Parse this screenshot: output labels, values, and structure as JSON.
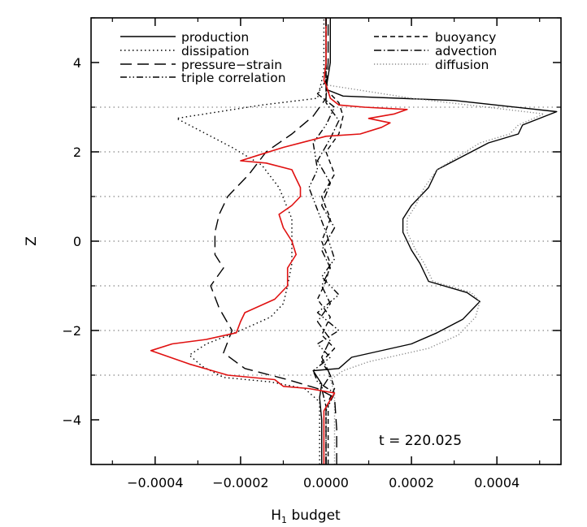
{
  "chart_data": {
    "type": "line",
    "title": "",
    "xlabel": "H",
    "xlabel_sub": "1",
    "xlabel_rest": " budget",
    "ylabel": "Z",
    "xlim": [
      -0.00055,
      0.00055
    ],
    "ylim": [
      -5,
      5
    ],
    "x_ticks": [
      -0.0004,
      -0.0002,
      0.0,
      0.0002,
      0.0004
    ],
    "x_tick_labels": [
      "−0.0004",
      "−0.0002",
      "0.0000",
      "0.0002",
      "0.0004"
    ],
    "y_ticks": [
      -4,
      -2,
      0,
      2,
      4
    ],
    "y_tick_labels": [
      "−4",
      "−2",
      "0",
      "2",
      "4"
    ],
    "reference_lines_z": [
      3,
      2,
      1,
      0,
      -1,
      -2,
      -3
    ],
    "annotation": "t  =  220.025",
    "legend": [
      {
        "label": "production",
        "dash": "solid",
        "column": 0
      },
      {
        "label": "dissipation",
        "dash": "dotted",
        "column": 0
      },
      {
        "label": "pressure−strain",
        "dash": "longdash",
        "column": 0
      },
      {
        "label": "triple correlation",
        "dash": "dashdotdot",
        "column": 0
      },
      {
        "label": "buoyancy",
        "dash": "dashed",
        "column": 1
      },
      {
        "label": "advection",
        "dash": "dashdot",
        "column": 1
      },
      {
        "label": "diffusion",
        "dash": "graydotted",
        "column": 1
      }
    ],
    "series": [
      {
        "name": "production",
        "dash": "solid",
        "color": "#000000",
        "points": [
          [
            -1e-05,
            -5
          ],
          [
            -1e-05,
            -4
          ],
          [
            -1.5e-05,
            -3.5
          ],
          [
            -1e-05,
            -3.2
          ],
          [
            -3e-05,
            -2.9
          ],
          [
            3e-05,
            -2.85
          ],
          [
            6e-05,
            -2.6
          ],
          [
            0.0002,
            -2.3
          ],
          [
            0.00026,
            -2.05
          ],
          [
            0.00032,
            -1.75
          ],
          [
            0.00036,
            -1.35
          ],
          [
            0.00033,
            -1.15
          ],
          [
            0.00024,
            -0.9
          ],
          [
            0.00022,
            -0.5
          ],
          [
            0.0002,
            -0.2
          ],
          [
            0.00018,
            0.2
          ],
          [
            0.00018,
            0.5
          ],
          [
            0.0002,
            0.8
          ],
          [
            0.00024,
            1.2
          ],
          [
            0.00026,
            1.6
          ],
          [
            0.00038,
            2.2
          ],
          [
            0.00045,
            2.4
          ],
          [
            0.00046,
            2.6
          ],
          [
            0.00054,
            2.9
          ],
          [
            0.0003,
            3.15
          ],
          [
            4e-05,
            3.25
          ],
          [
            0.0,
            3.4
          ],
          [
            1e-05,
            4
          ],
          [
            1e-05,
            5
          ]
        ]
      },
      {
        "name": "diffusion",
        "dash": "graydotted",
        "color": "#888888",
        "points": [
          [
            2e-05,
            -5
          ],
          [
            2e-05,
            -4
          ],
          [
            2e-05,
            -3.4
          ],
          [
            1e-05,
            -3.1
          ],
          [
            4e-05,
            -2.9
          ],
          [
            0.0001,
            -2.7
          ],
          [
            0.00024,
            -2.4
          ],
          [
            0.00031,
            -2.1
          ],
          [
            0.00035,
            -1.7
          ],
          [
            0.00036,
            -1.35
          ],
          [
            0.00034,
            -1.15
          ],
          [
            0.00025,
            -0.9
          ],
          [
            0.00023,
            -0.5
          ],
          [
            0.00021,
            -0.2
          ],
          [
            0.00019,
            0.2
          ],
          [
            0.00019,
            0.5
          ],
          [
            0.00021,
            0.8
          ],
          [
            0.00023,
            1.2
          ],
          [
            0.00026,
            1.6
          ],
          [
            0.00036,
            2.2
          ],
          [
            0.00043,
            2.4
          ],
          [
            0.00045,
            2.6
          ],
          [
            0.00051,
            2.85
          ],
          [
            0.0002,
            3.2
          ],
          [
            0.0,
            3.5
          ],
          [
            0.0,
            5
          ]
        ]
      },
      {
        "name": "dissipation",
        "dash": "dotted",
        "color": "#000000",
        "points": [
          [
            -1.5e-05,
            -5
          ],
          [
            -1.5e-05,
            -3.6
          ],
          [
            -5e-05,
            -3.3
          ],
          [
            -0.00013,
            -3.15
          ],
          [
            -0.00024,
            -3.05
          ],
          [
            -0.00029,
            -2.8
          ],
          [
            -0.00032,
            -2.55
          ],
          [
            -0.00028,
            -2.3
          ],
          [
            -0.0002,
            -2.0
          ],
          [
            -0.00013,
            -1.7
          ],
          [
            -0.0001,
            -1.4
          ],
          [
            -9e-05,
            -1.0
          ],
          [
            -8e-05,
            -0.5
          ],
          [
            -8e-05,
            0.0
          ],
          [
            -8e-05,
            0.5
          ],
          [
            -0.00011,
            1.2
          ],
          [
            -0.00015,
            1.7
          ],
          [
            -0.00022,
            2.1
          ],
          [
            -0.00028,
            2.4
          ],
          [
            -0.00035,
            2.75
          ],
          [
            -0.00015,
            3.05
          ],
          [
            -2e-05,
            3.2
          ],
          [
            -5e-06,
            3.8
          ],
          [
            -5e-06,
            5
          ]
        ]
      },
      {
        "name": "pressure−strain",
        "dash": "longdash",
        "color": "#000000",
        "points": [
          [
            2.5e-05,
            -5
          ],
          [
            2.5e-05,
            -4.2
          ],
          [
            2e-05,
            -3.5
          ],
          [
            -2e-05,
            -3.3
          ],
          [
            -9e-05,
            -3.1
          ],
          [
            -0.00019,
            -2.85
          ],
          [
            -0.00024,
            -2.5
          ],
          [
            -0.00022,
            -2.0
          ],
          [
            -0.00025,
            -1.5
          ],
          [
            -0.00027,
            -1.0
          ],
          [
            -0.00024,
            -0.6
          ],
          [
            -0.00026,
            -0.3
          ],
          [
            -0.00026,
            0.2
          ],
          [
            -0.00025,
            0.6
          ],
          [
            -0.00023,
            1.0
          ],
          [
            -0.00018,
            1.5
          ],
          [
            -0.00014,
            2.0
          ],
          [
            -8e-05,
            2.4
          ],
          [
            -3e-05,
            2.8
          ],
          [
            0.0,
            3.2
          ],
          [
            5e-06,
            4
          ],
          [
            5e-06,
            5
          ]
        ]
      },
      {
        "name": "triple correlation",
        "dash": "dashdotdot",
        "color": "#000000",
        "points": [
          [
            0.0,
            -5
          ],
          [
            0.0,
            -3.8
          ],
          [
            2e-05,
            -3.4
          ],
          [
            -2e-05,
            -3.15
          ],
          [
            -3e-05,
            -2.9
          ],
          [
            1e-05,
            -2.6
          ],
          [
            -2e-05,
            -2.3
          ],
          [
            3e-05,
            -2.0
          ],
          [
            -2e-05,
            -1.6
          ],
          [
            3e-05,
            -1.2
          ],
          [
            -1e-05,
            -0.8
          ],
          [
            2e-05,
            -0.4
          ],
          [
            0.0,
            0.2
          ],
          [
            -2e-05,
            0.7
          ],
          [
            -4e-05,
            1.2
          ],
          [
            -2e-05,
            1.6
          ],
          [
            -3e-05,
            2.2
          ],
          [
            0.0,
            2.6
          ],
          [
            2e-05,
            3.0
          ],
          [
            -2e-05,
            3.3
          ],
          [
            0.0,
            3.6
          ],
          [
            0.0,
            5
          ]
        ]
      },
      {
        "name": "buoyancy",
        "dash": "dashed",
        "color": "#000000",
        "points": [
          [
            5e-06,
            -5
          ],
          [
            5e-06,
            -3.6
          ],
          [
            2e-05,
            -3.3
          ],
          [
            1e-05,
            -3.0
          ],
          [
            -1e-05,
            -2.7
          ],
          [
            2e-05,
            -2.4
          ],
          [
            -1e-05,
            -2.1
          ],
          [
            1e-05,
            -1.7
          ],
          [
            -2e-05,
            -1.3
          ],
          [
            0.0,
            -0.9
          ],
          [
            1e-05,
            -0.5
          ],
          [
            -1e-05,
            0.0
          ],
          [
            1e-05,
            0.5
          ],
          [
            -1e-05,
            1.0
          ],
          [
            2e-05,
            1.5
          ],
          [
            0.0,
            2.0
          ],
          [
            3e-05,
            2.4
          ],
          [
            4e-05,
            2.8
          ],
          [
            3e-05,
            3.1
          ],
          [
            0.0,
            3.4
          ],
          [
            0.0,
            5
          ]
        ]
      },
      {
        "name": "advection",
        "dash": "dashdot",
        "color": "#000000",
        "points": [
          [
            0.0,
            -5
          ],
          [
            0.0,
            -3.7
          ],
          [
            -1e-05,
            -3.3
          ],
          [
            1e-05,
            -3.0
          ],
          [
            -1e-05,
            -2.6
          ],
          [
            1e-05,
            -2.2
          ],
          [
            -2e-05,
            -1.8
          ],
          [
            1e-05,
            -1.4
          ],
          [
            -1e-05,
            -1.0
          ],
          [
            1e-05,
            -0.6
          ],
          [
            -1e-05,
            -0.2
          ],
          [
            2e-05,
            0.3
          ],
          [
            -1e-05,
            0.8
          ],
          [
            1e-05,
            1.3
          ],
          [
            -2e-05,
            1.8
          ],
          [
            1e-05,
            2.3
          ],
          [
            3e-05,
            2.7
          ],
          [
            0.0,
            3.1
          ],
          [
            0.0,
            5
          ]
        ]
      },
      {
        "name": "total",
        "dash": "solid",
        "color": "#e01010",
        "points": [
          [
            -5e-06,
            -5
          ],
          [
            -5e-06,
            -3.8
          ],
          [
            1e-05,
            -3.55
          ],
          [
            2e-05,
            -3.4
          ],
          [
            -4e-05,
            -3.3
          ],
          [
            -0.0001,
            -3.25
          ],
          [
            -0.00012,
            -3.1
          ],
          [
            -0.00023,
            -3.0
          ],
          [
            -0.00032,
            -2.75
          ],
          [
            -0.00041,
            -2.45
          ],
          [
            -0.00036,
            -2.3
          ],
          [
            -0.00028,
            -2.2
          ],
          [
            -0.00021,
            -2.05
          ],
          [
            -0.0002,
            -1.8
          ],
          [
            -0.00019,
            -1.6
          ],
          [
            -0.00012,
            -1.3
          ],
          [
            -9e-05,
            -1.0
          ],
          [
            -9e-05,
            -0.6
          ],
          [
            -7e-05,
            -0.3
          ],
          [
            -8e-05,
            0.0
          ],
          [
            -0.0001,
            0.3
          ],
          [
            -0.00011,
            0.6
          ],
          [
            -8e-05,
            0.8
          ],
          [
            -6e-05,
            1.0
          ],
          [
            -6e-05,
            1.2
          ],
          [
            -7e-05,
            1.4
          ],
          [
            -8e-05,
            1.6
          ],
          [
            -0.00014,
            1.75
          ],
          [
            -0.0002,
            1.8
          ],
          [
            -0.00015,
            1.95
          ],
          [
            -0.0001,
            2.1
          ],
          [
            -4e-05,
            2.25
          ],
          [
            0.0,
            2.35
          ],
          [
            8e-05,
            2.4
          ],
          [
            0.00013,
            2.55
          ],
          [
            0.00015,
            2.65
          ],
          [
            0.0001,
            2.75
          ],
          [
            0.00016,
            2.85
          ],
          [
            0.00019,
            2.95
          ],
          [
            9e-05,
            3.0
          ],
          [
            3e-05,
            3.05
          ],
          [
            1e-05,
            3.2
          ],
          [
            0.0,
            3.5
          ],
          [
            -5e-06,
            3.6
          ],
          [
            0.0,
            4.0
          ],
          [
            0.0,
            5
          ]
        ]
      }
    ]
  }
}
